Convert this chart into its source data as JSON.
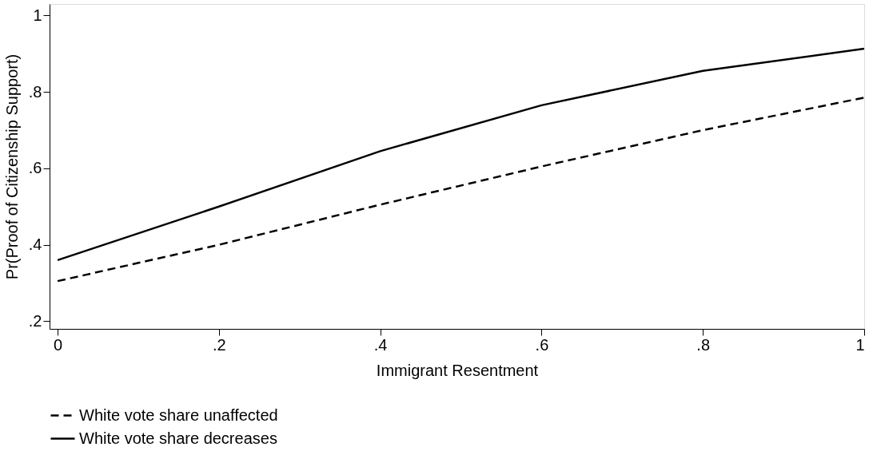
{
  "chart_data": {
    "type": "line",
    "xlabel": "Immigrant Resentment",
    "ylabel": "Pr(Proof of Citizenship Support)",
    "x": [
      0,
      0.2,
      0.4,
      0.6,
      0.8,
      1
    ],
    "series": [
      {
        "name": "White vote share unaffected",
        "color": "#000000",
        "line_style": "dashed",
        "values": [
          0.305,
          0.4,
          0.505,
          0.605,
          0.7,
          0.785
        ]
      },
      {
        "name": "White vote share decreases",
        "color": "#000000",
        "line_style": "solid",
        "values": [
          0.36,
          0.5,
          0.645,
          0.765,
          0.855,
          0.913
        ]
      }
    ],
    "xlim": [
      -0.01,
      1
    ],
    "ylim": [
      0.18,
      1.03
    ],
    "xticks": [
      {
        "value": 0,
        "label": "0"
      },
      {
        "value": 0.2,
        "label": ".2"
      },
      {
        "value": 0.4,
        "label": ".4"
      },
      {
        "value": 0.6,
        "label": ".6"
      },
      {
        "value": 0.8,
        "label": ".8"
      },
      {
        "value": 1,
        "label": "1"
      }
    ],
    "yticks": [
      {
        "value": 0.2,
        "label": ".2"
      },
      {
        "value": 0.4,
        "label": ".4"
      },
      {
        "value": 0.6,
        "label": ".6"
      },
      {
        "value": 0.8,
        "label": ".8"
      },
      {
        "value": 1,
        "label": "1"
      }
    ],
    "grid": false,
    "legend": "bottom",
    "marker": "none"
  }
}
